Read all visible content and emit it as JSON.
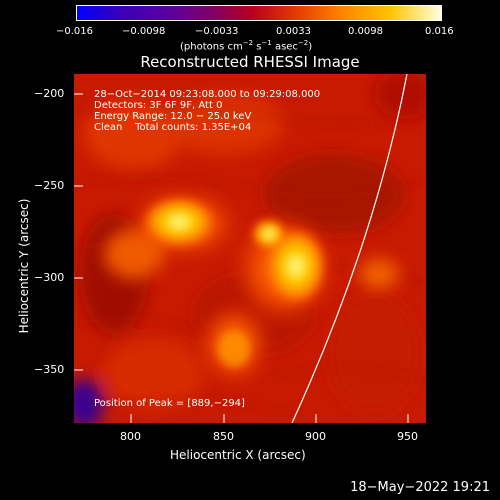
{
  "colorbar": {
    "ticks": [
      "−0.016",
      "−0.0098",
      "−0.0033",
      "0.0033",
      "0.0098",
      "0.016"
    ],
    "label_main": "(photons cm",
    "label_exp1": "−2",
    "label_mid1": " s",
    "label_exp2": "−1",
    "label_mid2": " asec",
    "label_exp3": "−2",
    "label_end": ")"
  },
  "title": "Reconstructed RHESSI Image",
  "info": {
    "line1": "28−Oct−2014 09:23:08.000 to 09:29:08.000",
    "line2": "Detectors: 3F 6F 9F, Att 0",
    "line3": "Energy Range: 12.0 − 25.0 keV",
    "line4": "Clean    Total counts: 1.35E+04",
    "peak": "Position of Peak = [889,−294]"
  },
  "x_axis": {
    "title": "Heliocentric X (arcsec)",
    "ticks": [
      "800",
      "850",
      "900",
      "950"
    ],
    "range": [
      769,
      961
    ]
  },
  "y_axis": {
    "title": "Heliocentric Y (arcsec)",
    "ticks": [
      "−200",
      "−250",
      "−300",
      "−350"
    ],
    "range": [
      -381,
      -191
    ]
  },
  "colors": {
    "background": "#000000",
    "limb": "#ffffff",
    "map_base": "#c81a00"
  },
  "timestamp": "18−May−2022 19:21"
}
